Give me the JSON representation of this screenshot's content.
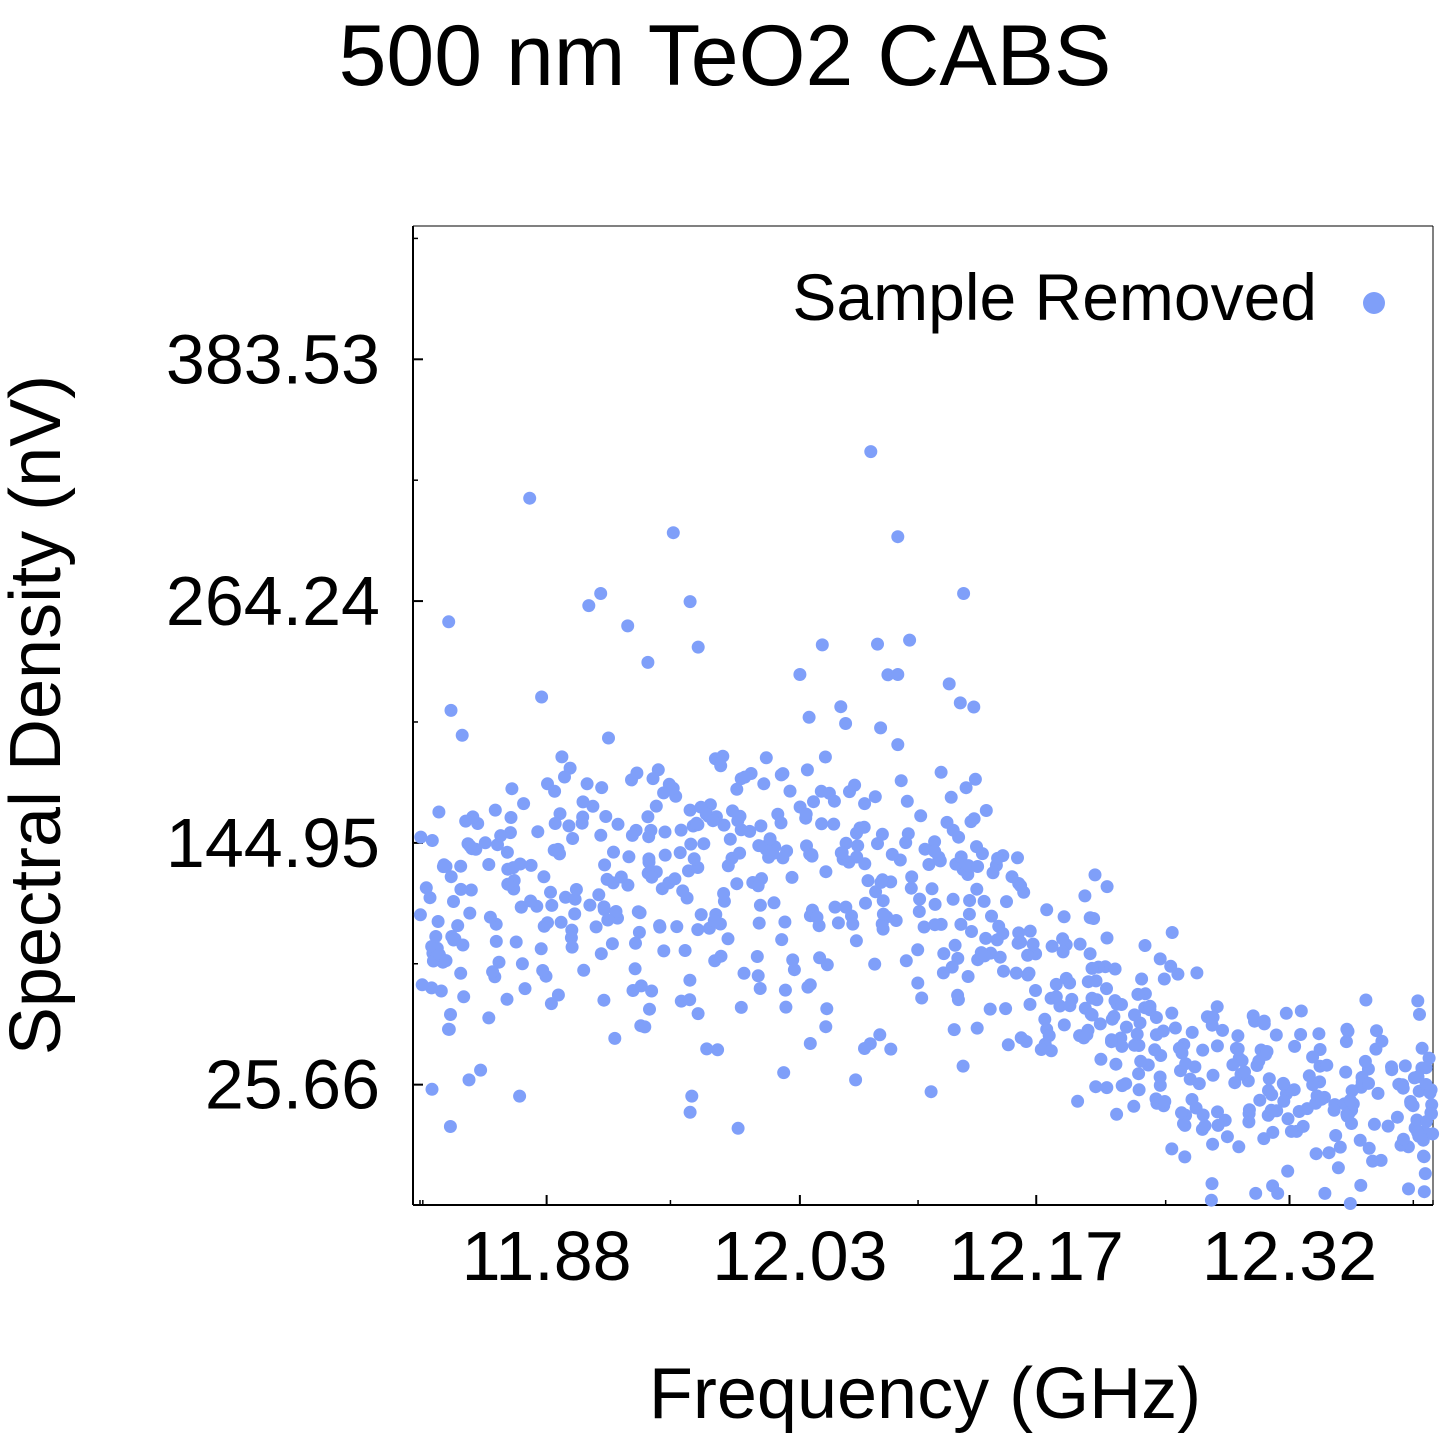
{
  "chart_data": {
    "type": "scatter",
    "title": "500 nm TeO2 CABS",
    "xlabel": "Frequency (GHz)",
    "ylabel": "Spectral Density (nV)",
    "xlim": [
      11.805,
      12.405
    ],
    "ylim": [
      -33.72,
      449.3
    ],
    "x_ticks": [
      "11.88",
      "12.03",
      "12.17",
      "12.32"
    ],
    "y_ticks": [
      "25.66",
      "144.95",
      "264.24",
      "383.53"
    ],
    "grid": false,
    "legend": {
      "position": "top-right",
      "entries": [
        "Sample Removed"
      ]
    },
    "series": [
      {
        "name": "Sample Removed",
        "color": "#7f9ff9",
        "seed": 20240611,
        "n_points": 720,
        "x_range": [
          11.805,
          12.405
        ],
        "trend": [
          {
            "x": 11.805,
            "y": 112
          },
          {
            "x": 11.88,
            "y": 118
          },
          {
            "x": 11.96,
            "y": 132
          },
          {
            "x": 12.03,
            "y": 138
          },
          {
            "x": 12.09,
            "y": 130
          },
          {
            "x": 12.14,
            "y": 112
          },
          {
            "x": 12.17,
            "y": 80
          },
          {
            "x": 12.22,
            "y": 55
          },
          {
            "x": 12.27,
            "y": 28
          },
          {
            "x": 12.32,
            "y": 22
          },
          {
            "x": 12.405,
            "y": 22
          }
        ],
        "spread": [
          {
            "x": 11.805,
            "y": 38
          },
          {
            "x": 12.1,
            "y": 42
          },
          {
            "x": 12.17,
            "y": 26
          },
          {
            "x": 12.405,
            "y": 22
          }
        ],
        "highlights": [
          {
            "x": 11.87,
            "y": 315
          },
          {
            "x": 12.072,
            "y": 338
          },
          {
            "x": 11.955,
            "y": 298
          },
          {
            "x": 12.088,
            "y": 296
          },
          {
            "x": 12.127,
            "y": 268
          },
          {
            "x": 11.822,
            "y": 254
          },
          {
            "x": 11.905,
            "y": 262
          },
          {
            "x": 11.912,
            "y": 268
          },
          {
            "x": 11.965,
            "y": 264
          },
          {
            "x": 11.83,
            "y": 198
          },
          {
            "x": 11.928,
            "y": 252
          },
          {
            "x": 11.94,
            "y": 234
          },
          {
            "x": 12.03,
            "y": 228
          },
          {
            "x": 12.076,
            "y": 243
          },
          {
            "x": 12.088,
            "y": 228
          },
          {
            "x": 12.095,
            "y": 245
          },
          {
            "x": 12.125,
            "y": 214
          },
          {
            "x": 12.133,
            "y": 212
          },
          {
            "x": 11.823,
            "y": 5
          },
          {
            "x": 11.834,
            "y": 28
          },
          {
            "x": 11.864,
            "y": 20
          },
          {
            "x": 11.966,
            "y": 20
          },
          {
            "x": 11.965,
            "y": 12
          },
          {
            "x": 12.063,
            "y": 28
          },
          {
            "x": 12.3,
            "y": -28
          },
          {
            "x": 12.313,
            "y": -28
          },
          {
            "x": 12.341,
            "y": -28
          },
          {
            "x": 12.356,
            "y": -33
          },
          {
            "x": 12.258,
            "y": -10
          },
          {
            "x": 12.29,
            "y": -5
          },
          {
            "x": 12.327,
            "y": 62
          },
          {
            "x": 12.305,
            "y": 57
          },
          {
            "x": 12.354,
            "y": 53
          },
          {
            "x": 12.396,
            "y": 67
          },
          {
            "x": 12.196,
            "y": 95
          },
          {
            "x": 12.203,
            "y": 83
          }
        ]
      }
    ]
  }
}
